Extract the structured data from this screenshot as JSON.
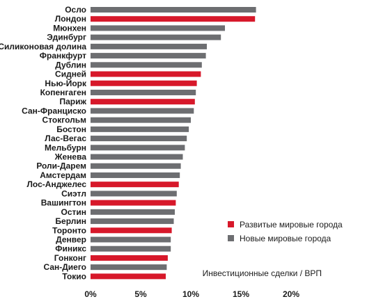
{
  "chart_data": {
    "type": "bar",
    "orientation": "horizontal",
    "categories": [
      "Осло",
      "Лондон",
      "Мюнхен",
      "Эдинбург",
      "Силиконовая долина",
      "Франкфурт",
      "Дублин",
      "Сидней",
      "Нью-Йорк",
      "Копенгаген",
      "Париж",
      "Сан-Франциско",
      "Стокгольм",
      "Бостон",
      "Лас-Вегас",
      "Мельбурн",
      "Женева",
      "Роли-Дарем",
      "Амстердам",
      "Лос-Анджелес",
      "Сиэтл",
      "Вашингтон",
      "Остин",
      "Берлин",
      "Торонто",
      "Денвер",
      "Финикс",
      "Гонконг",
      "Сан-Диего",
      "Токио"
    ],
    "values": [
      16.5,
      16.4,
      13.4,
      13.0,
      11.6,
      11.5,
      11.1,
      11.0,
      10.6,
      10.5,
      10.4,
      10.3,
      10.0,
      9.8,
      9.6,
      9.4,
      9.2,
      9.0,
      8.9,
      8.8,
      8.6,
      8.5,
      8.4,
      8.3,
      8.1,
      8.0,
      8.0,
      7.7,
      7.6,
      7.5
    ],
    "groups": [
      "new",
      "developed",
      "new",
      "new",
      "new",
      "new",
      "new",
      "developed",
      "developed",
      "new",
      "developed",
      "new",
      "new",
      "new",
      "new",
      "new",
      "new",
      "new",
      "new",
      "developed",
      "new",
      "developed",
      "new",
      "new",
      "developed",
      "new",
      "new",
      "developed",
      "new",
      "developed"
    ],
    "colors": {
      "developed": "#d7182a",
      "new": "#6d6e71"
    },
    "xlim": [
      0,
      20
    ],
    "xticks": [
      "0%",
      "5%",
      "10%",
      "15%",
      "20%"
    ],
    "xtick_values": [
      0,
      5,
      10,
      15,
      20
    ],
    "xlabel": "Инвестиционные сделки / ВРП",
    "legend": {
      "position": "right",
      "items": [
        {
          "key": "developed",
          "label": "Развитые мировые города"
        },
        {
          "key": "new",
          "label": "Новые мировые города"
        }
      ]
    },
    "grid": false
  }
}
